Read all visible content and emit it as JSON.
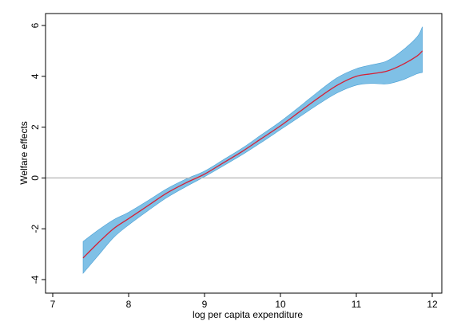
{
  "chart_data": {
    "type": "area",
    "title": "",
    "xlabel": "log per capita expenditure",
    "ylabel": "Welfare effects",
    "xlim": [
      7,
      12
    ],
    "ylim": [
      -4,
      6
    ],
    "x_ticks": [
      "7",
      "8",
      "9",
      "10",
      "11",
      "12"
    ],
    "y_ticks": [
      "-4",
      "-2",
      "0",
      "2",
      "4",
      "6"
    ],
    "reference_line_y": 0,
    "grid": false,
    "legend": "none",
    "colors": {
      "estimate_line": "#d62035",
      "confidence_band": "#7fc0e6",
      "band_edge": "#4a9fd4",
      "reference_line": "#b4b4b4",
      "axis": "#000000"
    },
    "series": [
      {
        "role": "estimate",
        "x": [
          7.4,
          7.6,
          7.8,
          8.0,
          8.25,
          8.5,
          8.75,
          9.0,
          9.25,
          9.5,
          9.75,
          10.0,
          10.25,
          10.5,
          10.75,
          11.0,
          11.2,
          11.4,
          11.6,
          11.8,
          11.87
        ],
        "y": [
          -3.15,
          -2.55,
          -2.0,
          -1.6,
          -1.1,
          -0.6,
          -0.2,
          0.15,
          0.6,
          1.05,
          1.55,
          2.05,
          2.6,
          3.15,
          3.65,
          4.0,
          4.1,
          4.2,
          4.45,
          4.8,
          5.0
        ]
      },
      {
        "role": "confidence_band",
        "x": [
          7.4,
          7.6,
          7.8,
          8.0,
          8.25,
          8.5,
          8.75,
          9.0,
          9.25,
          9.5,
          9.75,
          10.0,
          10.25,
          10.5,
          10.75,
          11.0,
          11.2,
          11.4,
          11.6,
          11.8,
          11.87
        ],
        "lower": [
          -3.75,
          -3.05,
          -2.35,
          -1.85,
          -1.3,
          -0.78,
          -0.35,
          0.05,
          0.48,
          0.92,
          1.4,
          1.9,
          2.4,
          2.9,
          3.35,
          3.65,
          3.72,
          3.7,
          3.85,
          4.1,
          4.15
        ],
        "upper": [
          -2.5,
          -2.05,
          -1.65,
          -1.35,
          -0.9,
          -0.43,
          -0.05,
          0.27,
          0.72,
          1.18,
          1.7,
          2.22,
          2.8,
          3.4,
          3.95,
          4.3,
          4.45,
          4.6,
          5.0,
          5.55,
          5.95
        ]
      }
    ]
  }
}
